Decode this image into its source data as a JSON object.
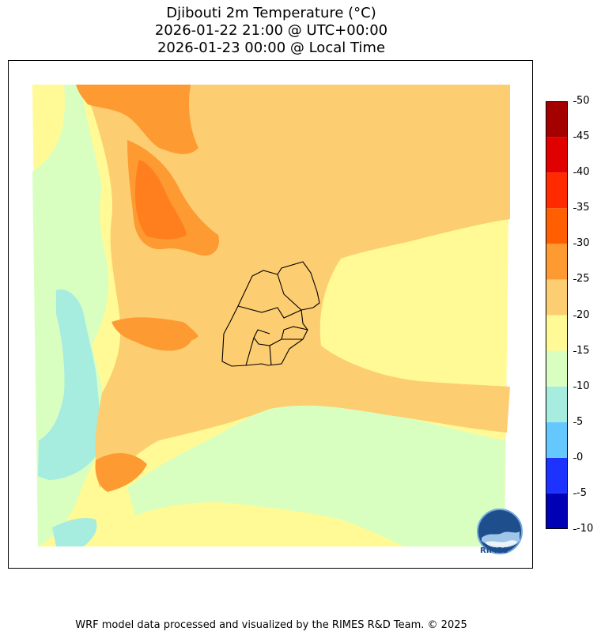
{
  "title": {
    "line1": "Djibouti 2m Temperature (°C)",
    "line2": "2026-01-22 21:00 @ UTC+00:00",
    "line3": "2026-01-23 00:00 @ Local Time"
  },
  "colorbar": {
    "levels": [
      -10,
      -5,
      0,
      5,
      10,
      15,
      20,
      25,
      30,
      35,
      40,
      45,
      50
    ],
    "tick_labels": [
      "50",
      "45",
      "40",
      "35",
      "30",
      "25",
      "20",
      "15",
      "10",
      "5",
      "0",
      "-5",
      "-10"
    ],
    "colors": [
      "#0000b4",
      "#1e32ff",
      "#64c8ff",
      "#a6ecdf",
      "#d8ffc0",
      "#fffa96",
      "#fdcd71",
      "#fd9a32",
      "#ff5f00",
      "#ff2a00",
      "#e10000",
      "#a50000"
    ]
  },
  "map": {
    "country": "Djibouti",
    "variable": "2m Temperature",
    "unit": "°C"
  },
  "logo": {
    "text": "RIMES",
    "icon": "rimes-globe-logo-icon"
  },
  "footer": {
    "credit": "WRF model data processed and visualized by the RIMES R&D Team. © 2025"
  }
}
